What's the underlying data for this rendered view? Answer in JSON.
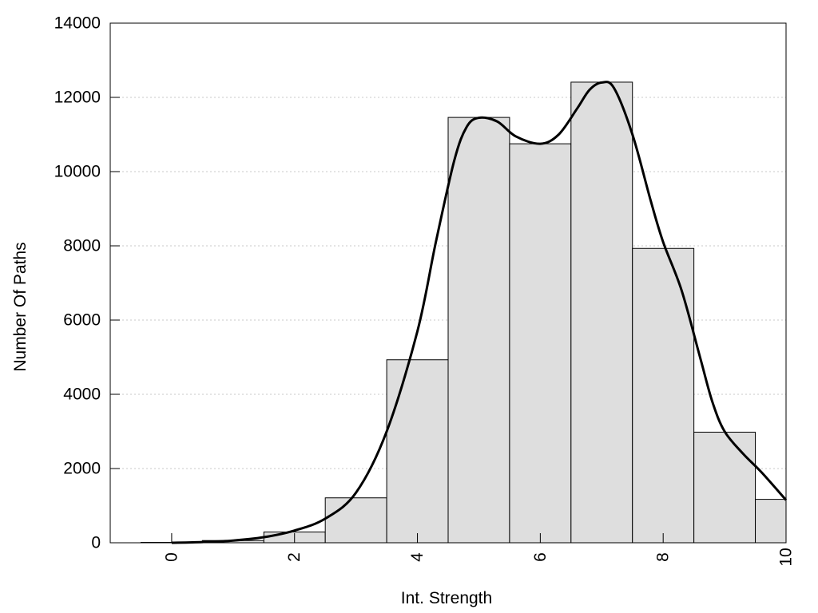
{
  "chart_data": {
    "type": "bar",
    "xlabel": "Int. Strength",
    "ylabel": "Number Of Paths",
    "xlim": [
      -1,
      10
    ],
    "ylim": [
      0,
      14000
    ],
    "x_ticks": [
      0,
      2,
      4,
      6,
      8,
      10
    ],
    "y_ticks": [
      0,
      2000,
      4000,
      6000,
      8000,
      10000,
      12000,
      14000
    ],
    "bins": [
      {
        "center": 0,
        "value": 10
      },
      {
        "center": 1,
        "value": 60
      },
      {
        "center": 2,
        "value": 290
      },
      {
        "center": 3,
        "value": 1210
      },
      {
        "center": 4,
        "value": 4930
      },
      {
        "center": 5,
        "value": 11460
      },
      {
        "center": 6,
        "value": 10750
      },
      {
        "center": 7,
        "value": 12410
      },
      {
        "center": 8,
        "value": 7930
      },
      {
        "center": 9,
        "value": 2980
      },
      {
        "center": 10,
        "value": 1170
      }
    ],
    "bin_width": 1,
    "bar_color": "#dedede",
    "curve": {
      "x": [
        0,
        0.5,
        1,
        1.5,
        2,
        2.5,
        3,
        3.5,
        4,
        4.3,
        4.6,
        4.8,
        5,
        5.3,
        5.6,
        6,
        6.3,
        6.6,
        6.8,
        7,
        7.2,
        7.5,
        7.8,
        8,
        8.3,
        8.6,
        8.8,
        9,
        9.3,
        9.6,
        10
      ],
      "y": [
        0,
        20,
        60,
        150,
        330,
        650,
        1350,
        3000,
        5700,
        8100,
        10300,
        11200,
        11450,
        11350,
        10950,
        10750,
        11000,
        11700,
        12200,
        12400,
        12250,
        11000,
        9200,
        8100,
        6800,
        5000,
        3800,
        3000,
        2400,
        1900,
        1150
      ]
    },
    "grid": "horizontal-dotted",
    "legend": "none"
  }
}
